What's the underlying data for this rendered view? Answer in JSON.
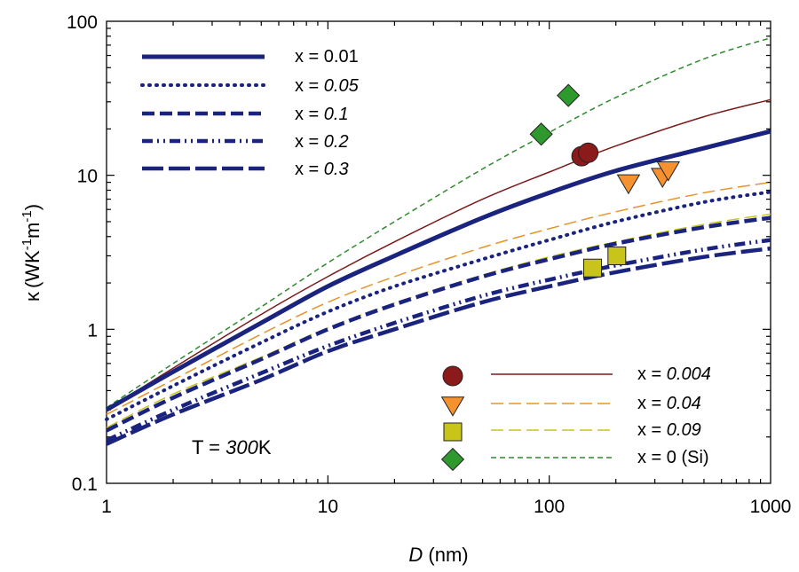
{
  "chart_data": {
    "type": "line",
    "title": "",
    "xlabel": {
      "var": "D",
      "unit": " (nm)"
    },
    "ylabel": {
      "kappa": "κ",
      "unit": "(WK",
      "sup1": "-1",
      "mid": "m",
      "sup2": "-1",
      "close": ")"
    },
    "xscale": "log",
    "yscale": "log",
    "xlim": [
      1,
      1000
    ],
    "ylim": [
      0.1,
      100
    ],
    "x_ticks": [
      {
        "value": 1,
        "label": "1"
      },
      {
        "value": 10,
        "label": "10"
      },
      {
        "value": 100,
        "label": "100"
      },
      {
        "value": 1000,
        "label": "1000"
      }
    ],
    "y_ticks": [
      {
        "value": 0.1,
        "label": "0.1"
      },
      {
        "value": 1,
        "label": "1"
      },
      {
        "value": 10,
        "label": "10"
      },
      {
        "value": 100,
        "label": "100"
      }
    ],
    "grid": false,
    "annotation": {
      "prefix": "T = ",
      "value": "300",
      "unit": "K"
    },
    "model_series": [
      {
        "name": "x = 0.01",
        "prefix": "x = ",
        "value": "0.01",
        "italic": false,
        "color": "#1a237e",
        "width": 5,
        "dash": "",
        "legend_row": 0,
        "x": [
          1,
          2,
          5,
          10,
          20,
          50,
          100,
          200,
          500,
          1000
        ],
        "y": [
          0.3,
          0.53,
          1.1,
          1.9,
          3.0,
          5.3,
          7.7,
          10.7,
          15.0,
          19.3
        ]
      },
      {
        "name": "x = 0.05",
        "prefix": "x = ",
        "value": "0.05",
        "italic": true,
        "color": "#1a237e",
        "width": 4,
        "dash": "1 7",
        "cap": "round",
        "legend_row": 1,
        "x": [
          1,
          2,
          5,
          10,
          20,
          50,
          100,
          200,
          500,
          1000
        ],
        "y": [
          0.26,
          0.43,
          0.82,
          1.3,
          1.9,
          2.85,
          3.8,
          5.0,
          6.7,
          7.8
        ]
      },
      {
        "name": "x = 0.1",
        "prefix": "x = ",
        "value": "0.1",
        "italic": true,
        "color": "#1a237e",
        "width": 4.5,
        "dash": "14 6",
        "legend_row": 2,
        "x": [
          1,
          2,
          5,
          10,
          20,
          50,
          100,
          200,
          500,
          1000
        ],
        "y": [
          0.22,
          0.36,
          0.64,
          1.0,
          1.45,
          2.2,
          2.85,
          3.6,
          4.6,
          5.3
        ]
      },
      {
        "name": "x = 0.2",
        "prefix": "x = ",
        "value": "0.2",
        "italic": true,
        "color": "#1a237e",
        "width": 4.5,
        "dash": "12 5 2 5 2 5",
        "legend_row": 3,
        "x": [
          1,
          2,
          5,
          10,
          20,
          50,
          100,
          200,
          500,
          1000
        ],
        "y": [
          0.19,
          0.3,
          0.52,
          0.78,
          1.1,
          1.65,
          2.1,
          2.6,
          3.3,
          3.8
        ]
      },
      {
        "name": "x = 0.3",
        "prefix": "x = ",
        "value": "0.3",
        "italic": true,
        "color": "#1a237e",
        "width": 4.5,
        "dash": "24 6",
        "legend_row": 4,
        "x": [
          1,
          2,
          5,
          10,
          20,
          50,
          100,
          200,
          500,
          1000
        ],
        "y": [
          0.18,
          0.28,
          0.47,
          0.72,
          1.0,
          1.5,
          1.9,
          2.35,
          2.95,
          3.35
        ]
      }
    ],
    "reference_series": [
      {
        "name": "x = 0.004",
        "prefix": "x = ",
        "value": "0.004",
        "italic": true,
        "color": "#7b1a1a",
        "width": 1.5,
        "dash": "",
        "marker": "circle",
        "marker_color": "#8b1a1a",
        "legend_row": 0,
        "x": [
          1,
          2,
          5,
          10,
          20,
          50,
          100,
          200,
          500,
          1000
        ],
        "y": [
          0.3,
          0.56,
          1.25,
          2.2,
          3.7,
          7.0,
          10.5,
          15.5,
          24.0,
          31.0
        ],
        "points": [
          {
            "x": 140,
            "y": 13.3
          },
          {
            "x": 150,
            "y": 14.0
          }
        ]
      },
      {
        "name": "x = 0.04",
        "prefix": "x = ",
        "value": "0.04",
        "italic": true,
        "color": "#e8922a",
        "width": 1.5,
        "dash": "14 6",
        "marker": "triangle-down",
        "marker_color": "#f5912e",
        "legend_row": 1,
        "x": [
          1,
          2,
          5,
          10,
          20,
          50,
          100,
          200,
          500,
          1000
        ],
        "y": [
          0.28,
          0.47,
          0.93,
          1.5,
          2.2,
          3.4,
          4.5,
          5.8,
          7.7,
          9.0
        ],
        "points": [
          {
            "x": 228,
            "y": 8.9
          },
          {
            "x": 325,
            "y": 9.8
          },
          {
            "x": 345,
            "y": 10.8
          }
        ]
      },
      {
        "name": "x = 0.09",
        "prefix": "x = ",
        "value": "0.09",
        "italic": true,
        "color": "#c9c41a",
        "width": 1.5,
        "dash": "14 6",
        "marker": "square",
        "marker_color": "#c9c41a",
        "legend_row": 2,
        "x": [
          1,
          2,
          5,
          10,
          20,
          50,
          100,
          200,
          500,
          1000
        ],
        "y": [
          0.23,
          0.38,
          0.66,
          1.02,
          1.48,
          2.25,
          2.95,
          3.7,
          4.8,
          5.6
        ],
        "points": [
          {
            "x": 157,
            "y": 2.5
          },
          {
            "x": 202,
            "y": 3.0
          }
        ]
      },
      {
        "name": "x = 0 (Si)",
        "prefix": "x = ",
        "value": "0 (Si)",
        "italic": false,
        "color": "#2e8b2e",
        "width": 1.5,
        "dash": "6 4",
        "marker": "diamond",
        "marker_color": "#2e9a2e",
        "legend_row": 3,
        "x": [
          1,
          2,
          5,
          10,
          20,
          50,
          100,
          200,
          500,
          1000
        ],
        "y": [
          0.31,
          0.6,
          1.4,
          2.7,
          5.0,
          11.0,
          19.0,
          32.0,
          57.0,
          78.0
        ],
        "points": [
          {
            "x": 92,
            "y": 18.5
          },
          {
            "x": 122,
            "y": 33.0
          }
        ]
      }
    ]
  }
}
